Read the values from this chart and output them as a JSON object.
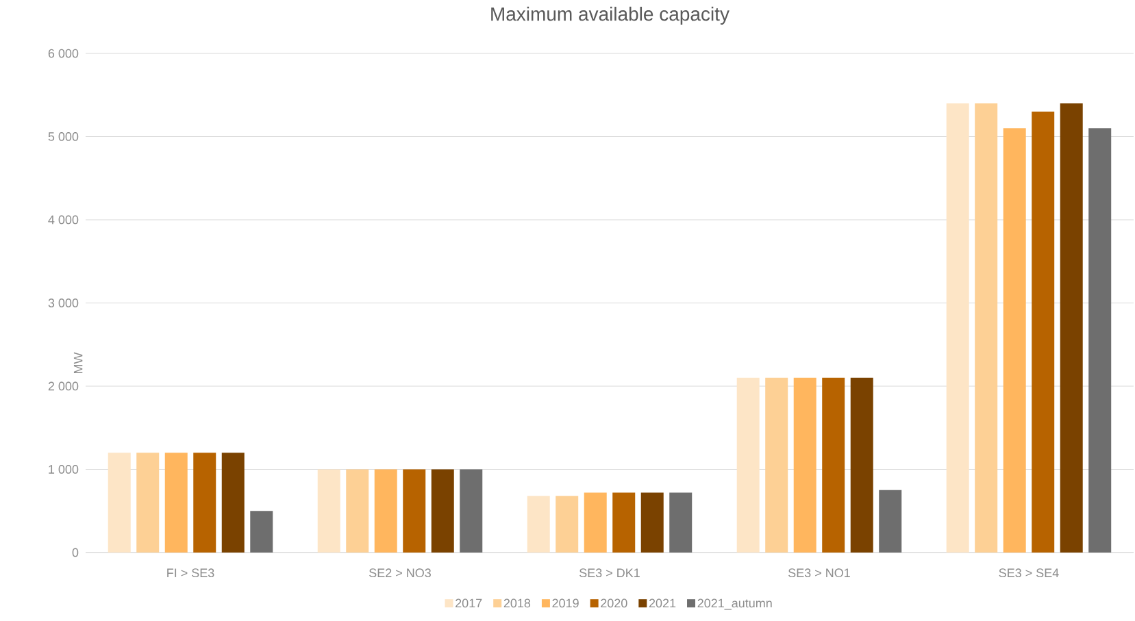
{
  "chart_data": {
    "type": "bar",
    "title": "Maximum available capacity",
    "ylabel": "MW",
    "categories": [
      "FI > SE3",
      "SE2 > NO3",
      "SE3 > DK1",
      "SE3 > NO1",
      "SE3 > SE4"
    ],
    "series": [
      {
        "name": "2017",
        "color": "#fde5c6",
        "values": [
          1200,
          1000,
          680,
          2100,
          5400
        ]
      },
      {
        "name": "2018",
        "color": "#fdd095",
        "values": [
          1200,
          1000,
          680,
          2100,
          5400
        ]
      },
      {
        "name": "2019",
        "color": "#ffb65e",
        "values": [
          1200,
          1000,
          720,
          2100,
          5100
        ]
      },
      {
        "name": "2020",
        "color": "#b76300",
        "values": [
          1200,
          1000,
          720,
          2100,
          5300
        ]
      },
      {
        "name": "2021",
        "color": "#7a4200",
        "values": [
          1200,
          1000,
          720,
          2100,
          5400
        ]
      },
      {
        "name": "2021_autumn",
        "color": "#6e6e6e",
        "values": [
          500,
          1000,
          720,
          750,
          5100
        ]
      }
    ],
    "ylim": [
      0,
      6000
    ],
    "yticks": [
      {
        "value": 0,
        "label": "0"
      },
      {
        "value": 1000,
        "label": "1 000"
      },
      {
        "value": 2000,
        "label": "2 000"
      },
      {
        "value": 3000,
        "label": "3 000"
      },
      {
        "value": 4000,
        "label": "4 000"
      },
      {
        "value": 5000,
        "label": "5 000"
      },
      {
        "value": 6000,
        "label": "6 000"
      }
    ],
    "grid": "y",
    "legend": "bottom"
  }
}
